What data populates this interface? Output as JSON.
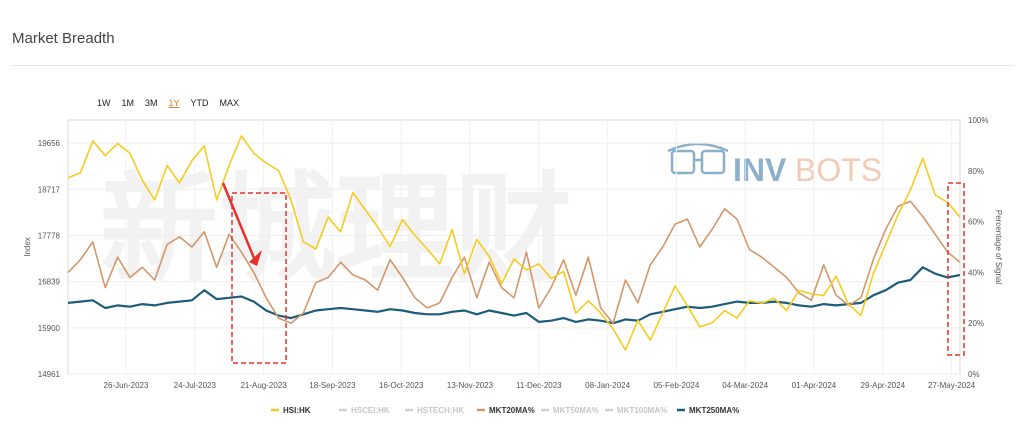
{
  "page": {
    "title": "Market Breadth"
  },
  "range_buttons": [
    {
      "label": "1W",
      "active": false
    },
    {
      "label": "1M",
      "active": false
    },
    {
      "label": "3M",
      "active": false
    },
    {
      "label": "1Y",
      "active": true
    },
    {
      "label": "YTD",
      "active": false
    },
    {
      "label": "MAX",
      "active": false
    }
  ],
  "watermark": {
    "logo_text_1": "INV",
    "logo_text_2": "BOTS",
    "cjk": "新城理财"
  },
  "colors": {
    "hsi": "#f5cc1f",
    "mkt20": "#d4976a",
    "mkt250": "#1d5c7a",
    "inactive": "#c8c8c8",
    "annotation": "#e8312c"
  },
  "chart_data": {
    "type": "line",
    "xlabel": "",
    "ylabel": "Index",
    "y2label": "Percentage of Signal",
    "x_ticks": [
      "26-Jun-2023",
      "24-Jul-2023",
      "21-Aug-2023",
      "18-Sep-2023",
      "16-Oct-2023",
      "13-Nov-2023",
      "11-Dec-2023",
      "08-Jan-2024",
      "05-Feb-2024",
      "04-Mar-2024",
      "01-Apr-2024",
      "29-Apr-2024",
      "27-May-2024"
    ],
    "y_ticks": [
      "14961",
      "15900",
      "16839",
      "17778",
      "18717",
      "19656"
    ],
    "y_lim": [
      14961,
      20126
    ],
    "y2_ticks": [
      "0%",
      "20%",
      "40%",
      "60%",
      "80%",
      "100%"
    ],
    "y2_lim": [
      0,
      1.0
    ],
    "legend_position": "bottom",
    "series": [
      {
        "name": "HSI:HK",
        "axis": "left",
        "active": true,
        "color": "#f5cc1f",
        "values": [
          18950,
          19050,
          19700,
          19400,
          19650,
          19450,
          18900,
          18500,
          19200,
          18850,
          19300,
          19600,
          18500,
          19200,
          19800,
          19450,
          19250,
          19100,
          18500,
          17650,
          17500,
          18150,
          17850,
          18650,
          18300,
          17950,
          17550,
          18100,
          17780,
          17500,
          17200,
          17900,
          17000,
          17700,
          17350,
          16800,
          17300,
          17080,
          17200,
          16900,
          17050,
          16200,
          16450,
          16200,
          15880,
          15450,
          16050,
          15650,
          16200,
          16750,
          16350,
          15920,
          16000,
          16250,
          16100,
          16450,
          16400,
          16500,
          16250,
          16660,
          16590,
          16560,
          16950,
          16380,
          16150,
          17000,
          17600,
          18200,
          18700,
          19350,
          18600,
          18450,
          18150
        ]
      },
      {
        "name": "HSCEI:HK",
        "axis": "left",
        "active": false,
        "color": "#c8c8c8",
        "values": []
      },
      {
        "name": "HSTECH:HK",
        "axis": "left",
        "active": false,
        "color": "#c8c8c8",
        "values": []
      },
      {
        "name": "MKT20MA%",
        "axis": "right",
        "active": true,
        "color": "#d4976a",
        "values": [
          0.4,
          0.45,
          0.52,
          0.34,
          0.46,
          0.38,
          0.42,
          0.37,
          0.51,
          0.54,
          0.5,
          0.56,
          0.42,
          0.55,
          0.48,
          0.4,
          0.3,
          0.22,
          0.2,
          0.24,
          0.36,
          0.38,
          0.44,
          0.39,
          0.37,
          0.33,
          0.45,
          0.38,
          0.3,
          0.26,
          0.28,
          0.38,
          0.46,
          0.3,
          0.44,
          0.34,
          0.3,
          0.48,
          0.26,
          0.34,
          0.45,
          0.31,
          0.46,
          0.26,
          0.2,
          0.37,
          0.28,
          0.43,
          0.5,
          0.59,
          0.61,
          0.5,
          0.57,
          0.65,
          0.61,
          0.49,
          0.46,
          0.42,
          0.38,
          0.32,
          0.29,
          0.43,
          0.31,
          0.27,
          0.3,
          0.45,
          0.57,
          0.66,
          0.68,
          0.62,
          0.55,
          0.48,
          0.44
        ]
      },
      {
        "name": "MKT50MA%",
        "axis": "right",
        "active": false,
        "color": "#c8c8c8",
        "values": []
      },
      {
        "name": "MKT100MA%",
        "axis": "right",
        "active": false,
        "color": "#c8c8c8",
        "values": []
      },
      {
        "name": "MKT250MA%",
        "axis": "right",
        "active": true,
        "color": "#1d5c7a",
        "values": [
          0.28,
          0.285,
          0.29,
          0.26,
          0.27,
          0.265,
          0.275,
          0.27,
          0.28,
          0.285,
          0.29,
          0.33,
          0.295,
          0.3,
          0.305,
          0.285,
          0.25,
          0.23,
          0.22,
          0.235,
          0.25,
          0.255,
          0.26,
          0.255,
          0.25,
          0.245,
          0.255,
          0.25,
          0.24,
          0.235,
          0.235,
          0.245,
          0.25,
          0.235,
          0.25,
          0.24,
          0.23,
          0.24,
          0.205,
          0.21,
          0.22,
          0.205,
          0.215,
          0.21,
          0.2,
          0.215,
          0.21,
          0.235,
          0.245,
          0.255,
          0.265,
          0.26,
          0.265,
          0.275,
          0.285,
          0.28,
          0.28,
          0.285,
          0.28,
          0.27,
          0.265,
          0.275,
          0.27,
          0.275,
          0.28,
          0.31,
          0.33,
          0.36,
          0.37,
          0.42,
          0.395,
          0.38,
          0.39
        ]
      }
    ]
  }
}
